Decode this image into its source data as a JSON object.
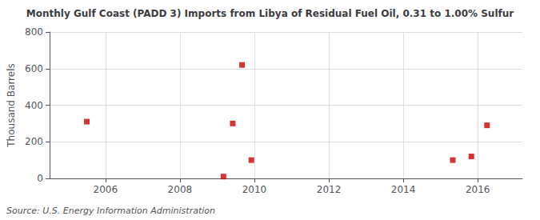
{
  "chart_data": {
    "type": "scatter",
    "title": "Monthly Gulf Coast (PADD 3) Imports from Libya of Residual Fuel Oil, 0.31 to 1.00% Sulfur",
    "ylabel": "Thousand Barrels",
    "source": "Source: U.S. Energy Information Administration",
    "x": [
      2005.5,
      2009.17,
      2009.42,
      2009.67,
      2009.92,
      2015.33,
      2015.83,
      2016.25
    ],
    "values": [
      310,
      10,
      300,
      620,
      100,
      100,
      120,
      290
    ],
    "color": "#cc0000",
    "marker": "square",
    "xlim": [
      2004.5,
      2017.2
    ],
    "xticks": [
      2006,
      2008,
      2010,
      2012,
      2014,
      2016
    ],
    "ylim": [
      0,
      800
    ],
    "yticks": [
      0,
      200,
      400,
      600,
      800
    ],
    "grid": true
  }
}
